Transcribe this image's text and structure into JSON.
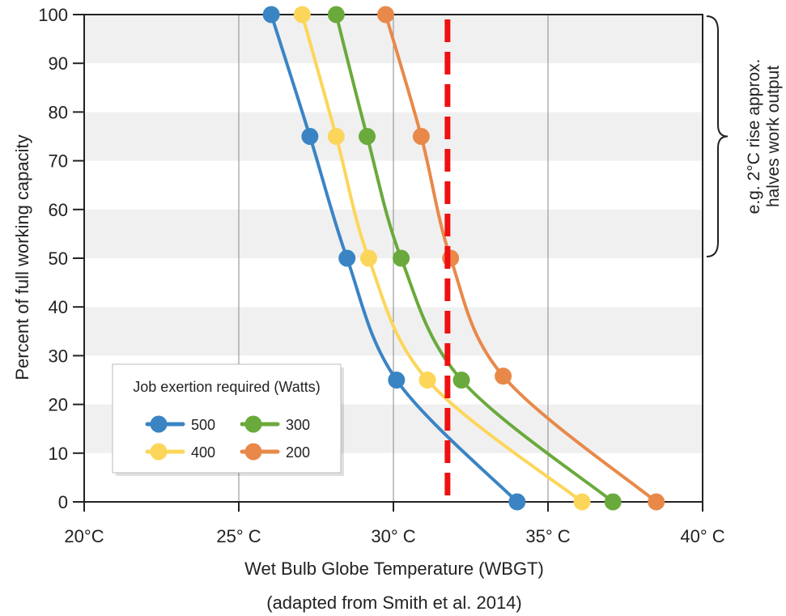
{
  "chart_data": {
    "type": "line",
    "title": "",
    "xlabel": "Wet Bulb Globe Temperature (WBGT)",
    "subcaption": "(adapted from Smith et al. 2014)",
    "ylabel": "Percent of full working capacity",
    "xlim": [
      20,
      40
    ],
    "ylim": [
      0,
      100
    ],
    "x_ticks": [
      {
        "value": 20,
        "label": "20°C"
      },
      {
        "value": 25,
        "label": "25° C"
      },
      {
        "value": 30,
        "label": "30° C"
      },
      {
        "value": 35,
        "label": "35° C"
      },
      {
        "value": 40,
        "label": "40° C"
      }
    ],
    "y_ticks": [
      0,
      10,
      20,
      30,
      40,
      50,
      60,
      70,
      80,
      90,
      100
    ],
    "grid": "vertical lines and alternating horizontal bands",
    "legend": {
      "title": "Job exertion required (Watts)",
      "placement": "bottom-left"
    },
    "series": [
      {
        "name": "500",
        "color": "#3a84c4",
        "points": [
          [
            26.05,
            100
          ],
          [
            27.3,
            75
          ],
          [
            28.5,
            50
          ],
          [
            30.1,
            25
          ],
          [
            34.0,
            0
          ]
        ]
      },
      {
        "name": "400",
        "color": "#fcd65a",
        "points": [
          [
            27.05,
            100
          ],
          [
            28.15,
            75
          ],
          [
            29.2,
            50
          ],
          [
            31.1,
            25
          ],
          [
            36.1,
            0
          ]
        ]
      },
      {
        "name": "300",
        "color": "#6aaa3c",
        "points": [
          [
            28.15,
            100
          ],
          [
            29.15,
            75
          ],
          [
            30.25,
            50
          ],
          [
            32.2,
            25
          ],
          [
            37.1,
            0
          ]
        ]
      },
      {
        "name": "200",
        "color": "#e8894a",
        "points": [
          [
            29.75,
            100
          ],
          [
            30.9,
            75
          ],
          [
            31.85,
            50
          ],
          [
            33.55,
            25.8
          ],
          [
            38.5,
            0
          ]
        ]
      }
    ],
    "reference_line": {
      "x": 31.75,
      "color": "#ee1111",
      "style": "dashed"
    },
    "annotation": {
      "lines": [
        "e.g. 2°C rise approx.",
        "halves work output"
      ],
      "y_range": [
        50,
        100
      ],
      "placement": "right"
    }
  }
}
